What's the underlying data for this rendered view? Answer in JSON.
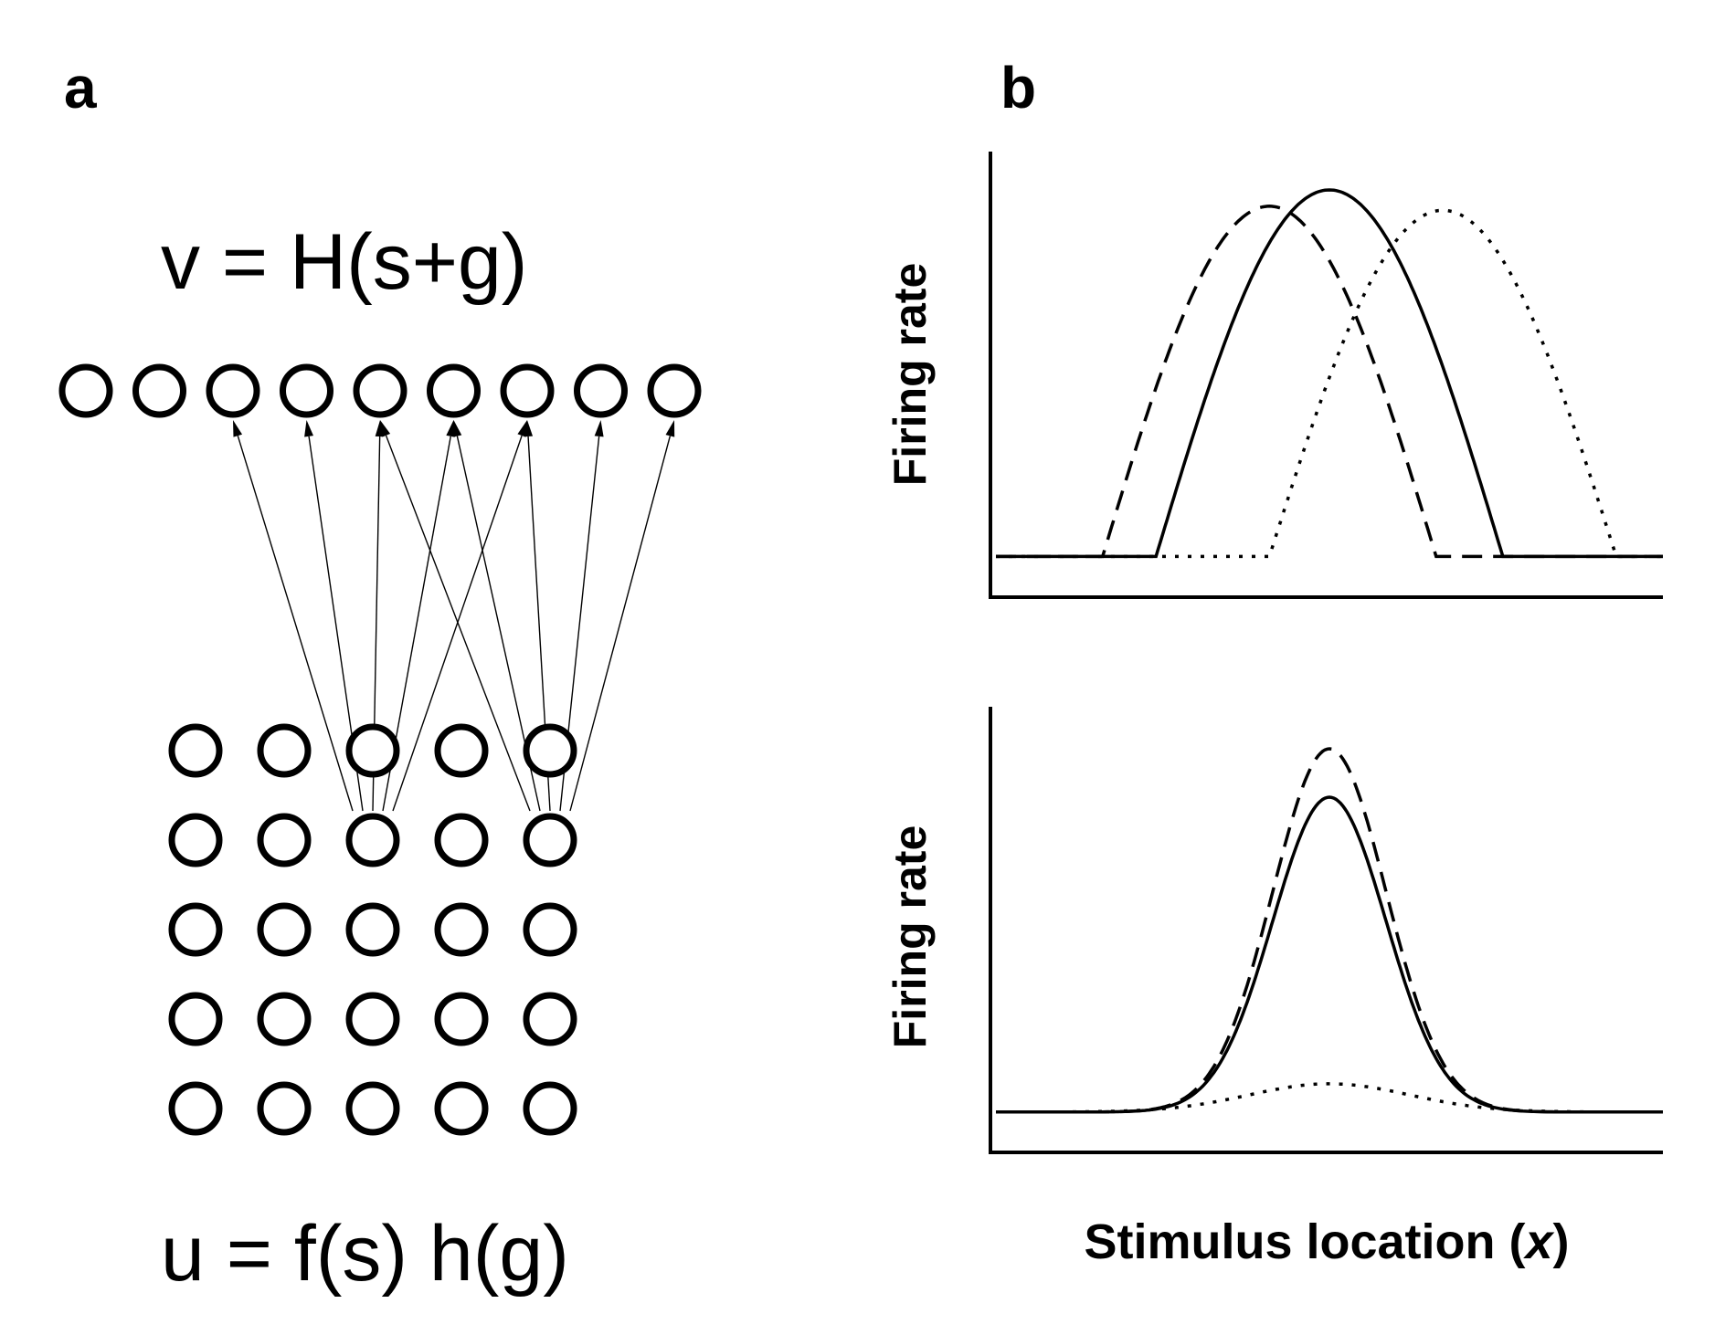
{
  "panel_a": {
    "label": "a",
    "top_equation": "v = H(s+g)",
    "bottom_equation": "u = f(s) h(g)",
    "output_layer": {
      "count": 9
    },
    "input_grid": {
      "rows": 5,
      "cols": 5
    },
    "connections": [
      {
        "from": "input-row1-col2",
        "to": "output-2"
      },
      {
        "from": "input-row1-col2",
        "to": "output-3"
      },
      {
        "from": "input-row1-col2",
        "to": "output-4"
      },
      {
        "from": "input-row1-col2",
        "to": "output-5"
      },
      {
        "from": "input-row1-col2",
        "to": "output-6"
      },
      {
        "from": "input-row1-col4",
        "to": "output-4"
      },
      {
        "from": "input-row1-col4",
        "to": "output-5"
      },
      {
        "from": "input-row1-col4",
        "to": "output-6"
      },
      {
        "from": "input-row1-col4",
        "to": "output-7"
      },
      {
        "from": "input-row1-col4",
        "to": "output-8"
      }
    ]
  },
  "panel_b": {
    "label": "b",
    "xlabel_prefix": "Stimulus location (",
    "xlabel_var": "x",
    "xlabel_suffix": ")",
    "charts": [
      {
        "ylabel": "Firing rate",
        "description_kind": "gain-field shift",
        "curve_shape": "half-cosine",
        "baseline": 0.1,
        "curves": [
          {
            "style": "solid",
            "center": 0.5,
            "halfwidth": 0.26,
            "peak": 1.0
          },
          {
            "style": "dashed",
            "center": 0.41,
            "halfwidth": 0.25,
            "peak": 0.96
          },
          {
            "style": "dotted",
            "center": 0.67,
            "halfwidth": 0.26,
            "peak": 0.95
          }
        ]
      },
      {
        "ylabel": "Firing rate",
        "description_kind": "gain modulation",
        "curve_shape": "gaussian",
        "baseline": 0.1,
        "curves": [
          {
            "style": "solid",
            "center": 0.5,
            "sigma": 0.085,
            "peak": 0.88
          },
          {
            "style": "dashed",
            "center": 0.5,
            "sigma": 0.085,
            "peak": 1.0
          },
          {
            "style": "dotted",
            "center": 0.5,
            "sigma": 0.12,
            "peak": 0.17
          }
        ]
      }
    ]
  }
}
